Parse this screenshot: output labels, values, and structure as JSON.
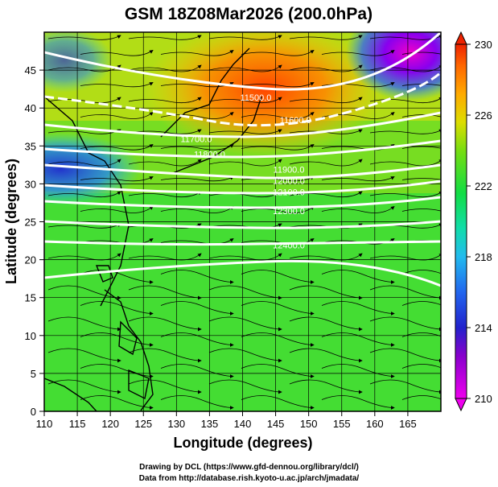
{
  "title": "GSM 18Z08Mar2026 (200.0hPa)",
  "chart_data": {
    "type": "map",
    "variable": "temperature shading with wind streamlines and geopotential height contours",
    "xlabel": "Longitude (degrees)",
    "ylabel": "Latitude (degrees)",
    "xlim": [
      110,
      170
    ],
    "ylim": [
      0,
      50
    ],
    "x_ticks": [
      110,
      115,
      120,
      125,
      130,
      135,
      140,
      145,
      150,
      155,
      160,
      165
    ],
    "y_ticks": [
      0,
      5,
      10,
      15,
      20,
      25,
      30,
      35,
      40,
      45
    ],
    "colorbar": {
      "min": 210,
      "max": 230,
      "tick_values": [
        210,
        214,
        218,
        222,
        226,
        230
      ],
      "tick_labels": [
        "210",
        "214",
        "218",
        "222",
        "226",
        "230"
      ]
    },
    "contours": [
      {
        "label": "11500.0",
        "lon": 142,
        "lat": 41.0
      },
      {
        "label": "11600.0",
        "lon": 148,
        "lat": 38.0
      },
      {
        "label": "11700.0",
        "lon": 133,
        "lat": 35.5
      },
      {
        "label": "11800.0",
        "lon": 135,
        "lat": 33.5
      },
      {
        "label": "11900.0",
        "lon": 147,
        "lat": 31.5
      },
      {
        "label": "12000.0",
        "lon": 147,
        "lat": 30.0
      },
      {
        "label": "12100.0",
        "lon": 147,
        "lat": 28.5
      },
      {
        "label": "12300.0",
        "lon": 147,
        "lat": 26.0
      },
      {
        "label": "12400.0",
        "lon": 147,
        "lat": 21.5
      }
    ]
  },
  "footer": {
    "line1": "Drawing by DCL (https://www.gfd-dennou.org/library/dcl/)",
    "line2": "Data from http://database.rish.kyoto-u.ac.jp/arch/jmadata/"
  }
}
